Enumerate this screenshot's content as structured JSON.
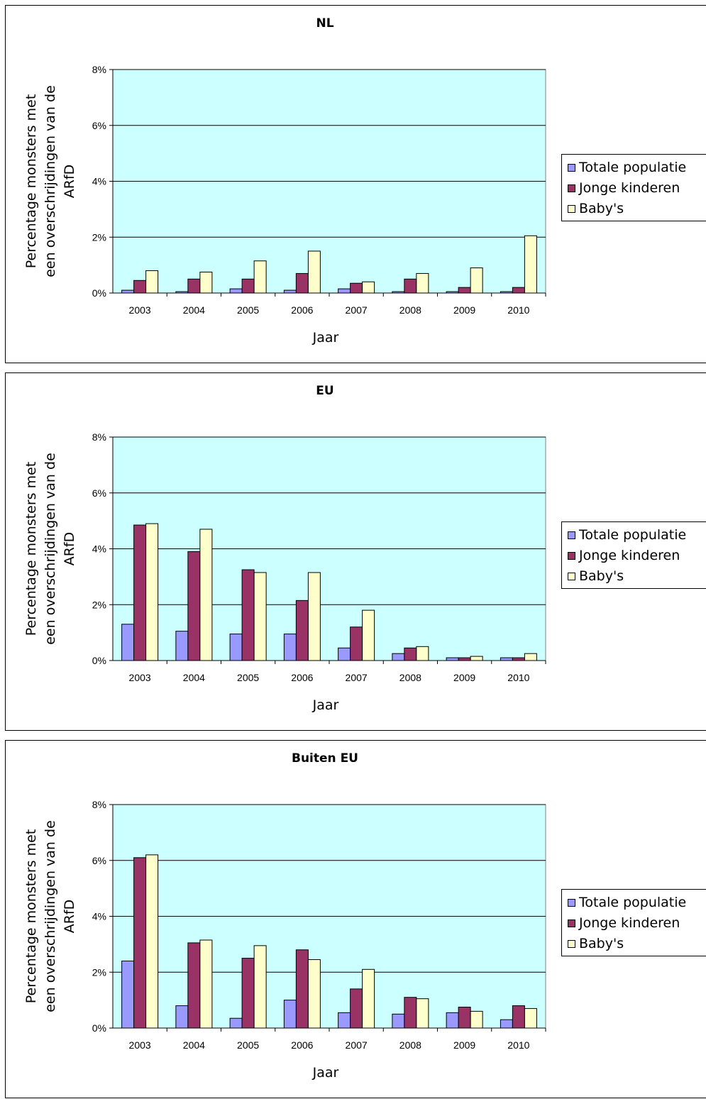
{
  "chart_data": [
    {
      "type": "bar",
      "title": "NL",
      "xlabel": "Jaar",
      "ylabel": [
        "Percentage monsters met",
        "een overschrijdingen van de",
        "ARfD"
      ],
      "categories": [
        "2003",
        "2004",
        "2005",
        "2006",
        "2007",
        "2008",
        "2009",
        "2010"
      ],
      "yticks": [
        "0%",
        "2%",
        "4%",
        "6%",
        "8%"
      ],
      "ylim": [
        0,
        8
      ],
      "series": [
        {
          "name": "Totale populatie",
          "color": "#9999ff",
          "values": [
            0.1,
            0.05,
            0.15,
            0.1,
            0.15,
            0.05,
            0.05,
            0.05
          ]
        },
        {
          "name": "Jonge kinderen",
          "color": "#993366",
          "values": [
            0.45,
            0.5,
            0.5,
            0.7,
            0.35,
            0.5,
            0.2,
            0.2
          ]
        },
        {
          "name": "Baby's",
          "color": "#ffffcc",
          "values": [
            0.8,
            0.75,
            1.15,
            1.5,
            0.4,
            0.7,
            0.9,
            2.05
          ]
        }
      ]
    },
    {
      "type": "bar",
      "title": "EU",
      "xlabel": "Jaar",
      "ylabel": [
        "Percentage monsters met",
        "een overschrijdingen van de",
        "ARfD"
      ],
      "categories": [
        "2003",
        "2004",
        "2005",
        "2006",
        "2007",
        "2008",
        "2009",
        "2010"
      ],
      "yticks": [
        "0%",
        "2%",
        "4%",
        "6%",
        "8%"
      ],
      "ylim": [
        0,
        8
      ],
      "series": [
        {
          "name": "Totale populatie",
          "color": "#9999ff",
          "values": [
            1.3,
            1.05,
            0.95,
            0.95,
            0.45,
            0.25,
            0.1,
            0.1
          ]
        },
        {
          "name": "Jonge kinderen",
          "color": "#993366",
          "values": [
            4.85,
            3.9,
            3.25,
            2.15,
            1.2,
            0.45,
            0.1,
            0.1
          ]
        },
        {
          "name": "Baby's",
          "color": "#ffffcc",
          "values": [
            4.9,
            4.7,
            3.15,
            3.15,
            1.8,
            0.5,
            0.15,
            0.25
          ]
        }
      ]
    },
    {
      "type": "bar",
      "title": "Buiten EU",
      "xlabel": "Jaar",
      "ylabel": [
        "Percentage monsters met",
        "een overschrijdingen van de",
        "ARfD"
      ],
      "categories": [
        "2003",
        "2004",
        "2005",
        "2006",
        "2007",
        "2008",
        "2009",
        "2010"
      ],
      "yticks": [
        "0%",
        "2%",
        "4%",
        "6%",
        "8%"
      ],
      "ylim": [
        0,
        8
      ],
      "series": [
        {
          "name": "Totale populatie",
          "color": "#9999ff",
          "values": [
            2.4,
            0.8,
            0.35,
            1.0,
            0.55,
            0.5,
            0.55,
            0.3
          ]
        },
        {
          "name": "Jonge kinderen",
          "color": "#993366",
          "values": [
            6.1,
            3.05,
            2.5,
            2.8,
            1.4,
            1.1,
            0.75,
            0.8
          ]
        },
        {
          "name": "Baby's",
          "color": "#ffffcc",
          "values": [
            6.2,
            3.15,
            2.95,
            2.45,
            2.1,
            1.05,
            0.6,
            0.7
          ]
        }
      ]
    }
  ],
  "colors": {
    "plot_background": "#ccffff",
    "gridline": "#000000"
  }
}
